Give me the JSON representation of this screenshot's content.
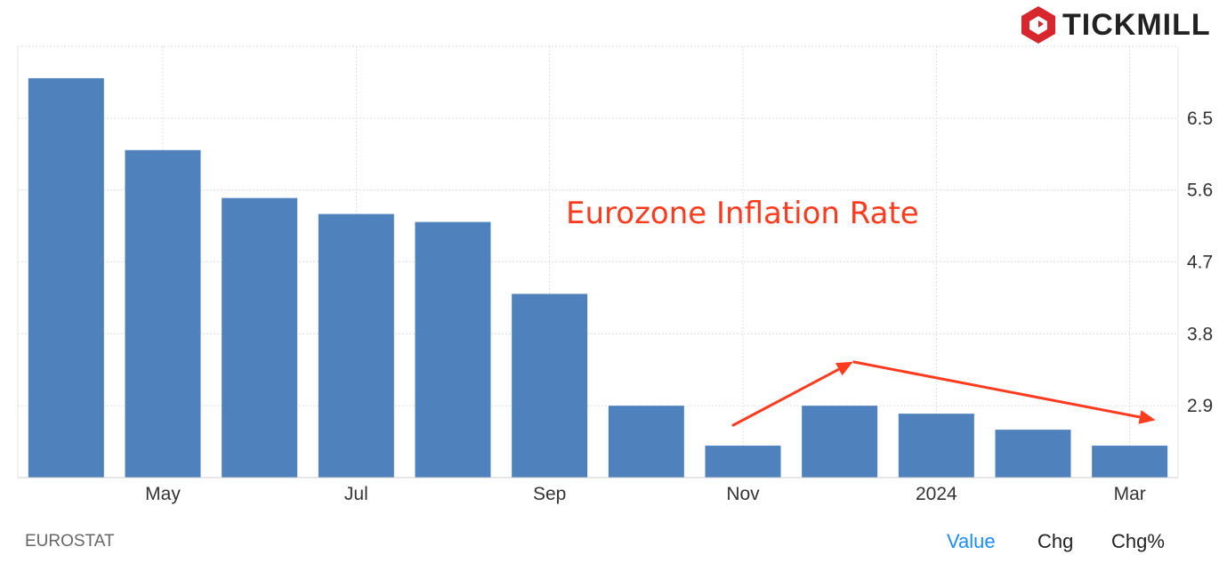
{
  "brand": {
    "name": "TICKMILL",
    "logo_color": "#d7262e"
  },
  "chart_data": {
    "type": "bar",
    "title": "Eurozone Inflation Rate",
    "xlabel": "",
    "ylabel": "",
    "categories": [
      "Apr 2023",
      "May 2023",
      "Jun 2023",
      "Jul 2023",
      "Aug 2023",
      "Sep 2023",
      "Oct 2023",
      "Nov 2023",
      "Dec 2023",
      "Jan 2024",
      "Feb 2024",
      "Mar 2024"
    ],
    "values": [
      7.0,
      6.1,
      5.5,
      5.3,
      5.2,
      4.3,
      2.9,
      2.4,
      2.9,
      2.8,
      2.6,
      2.4
    ],
    "x_tick_labels": [
      {
        "category": "May 2023",
        "label": "May"
      },
      {
        "category": "Jul 2023",
        "label": "Jul"
      },
      {
        "category": "Sep 2023",
        "label": "Sep"
      },
      {
        "category": "Nov 2023",
        "label": "Nov"
      },
      {
        "category": "Jan 2024",
        "label": "2024"
      },
      {
        "category": "Mar 2024",
        "label": "Mar"
      }
    ],
    "y_ticks": [
      "2.9",
      "3.8",
      "4.7",
      "5.6",
      "6.5"
    ],
    "ylim": [
      2.0,
      7.4
    ],
    "y_axis_side": "right",
    "grid": true,
    "bar_color": "#4f81bd",
    "annotation_color": "#ff3b1f",
    "annotations": [
      {
        "type": "arrow",
        "from": {
          "category": "Nov 2023",
          "value": 2.65
        },
        "to": {
          "category": "Dec 2023",
          "value": 3.45
        }
      },
      {
        "type": "arrow",
        "from": {
          "category": "Dec 2023",
          "value": 3.45
        },
        "to": {
          "category": "Mar 2024",
          "value": 2.72
        }
      }
    ]
  },
  "footer": {
    "source": "EUROSTAT",
    "tabs": [
      {
        "label": "Value",
        "active": true
      },
      {
        "label": "Chg",
        "active": false
      },
      {
        "label": "Chg%",
        "active": false
      }
    ],
    "active_color": "#1a8cff",
    "inactive_color": "#222222"
  }
}
